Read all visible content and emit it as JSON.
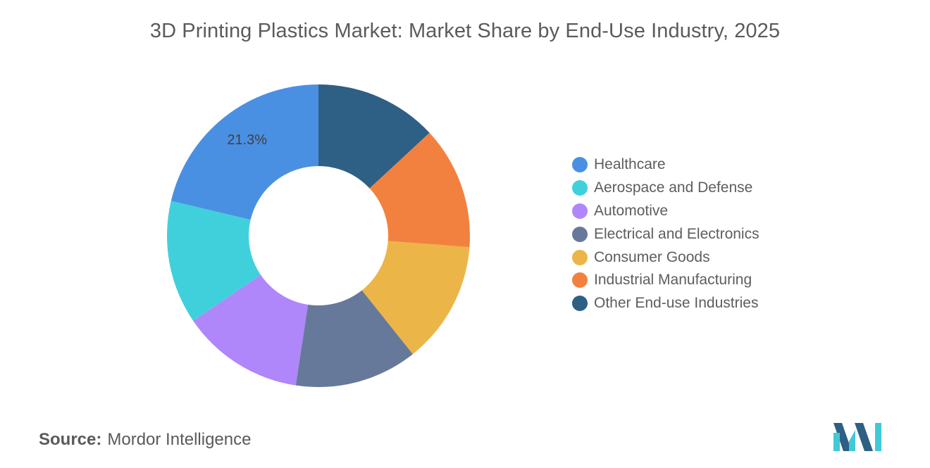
{
  "chart_data": {
    "type": "pie",
    "title": "3D Printing Plastics Market: Market Share by End-Use Industry, 2025",
    "donut": true,
    "categories": [
      "Other End-use Industries",
      "Industrial Manufacturing",
      "Consumer Goods",
      "Electrical and Electronics",
      "Automotive",
      "Aerospace and Defense",
      "Healthcare"
    ],
    "values": [
      13.1,
      13.1,
      13.1,
      13.1,
      13.1,
      13.2,
      21.3
    ],
    "colors": [
      "#2e5f85",
      "#f28140",
      "#ecb548",
      "#66799a",
      "#b086fb",
      "#40d0db",
      "#4a90e2"
    ],
    "data_labels": [
      {
        "category": "Healthcare",
        "text": "21.3%"
      }
    ],
    "legend_position": "right",
    "legend": [
      {
        "label": "Healthcare",
        "color": "#4a90e2"
      },
      {
        "label": "Aerospace and Defense",
        "color": "#40d0db"
      },
      {
        "label": "Automotive",
        "color": "#b086fb"
      },
      {
        "label": "Electrical and Electronics",
        "color": "#66799a"
      },
      {
        "label": "Consumer Goods",
        "color": "#ecb548"
      },
      {
        "label": "Industrial Manufacturing",
        "color": "#f28140"
      },
      {
        "label": "Other End-use Industries",
        "color": "#2e5f85"
      }
    ]
  },
  "footer": {
    "source_label": "Source:",
    "source_value": "Mordor Intelligence"
  },
  "logo": {
    "icon": "mordor-intelligence-logo",
    "colors": [
      "#2e5f85",
      "#40c9d6"
    ]
  }
}
